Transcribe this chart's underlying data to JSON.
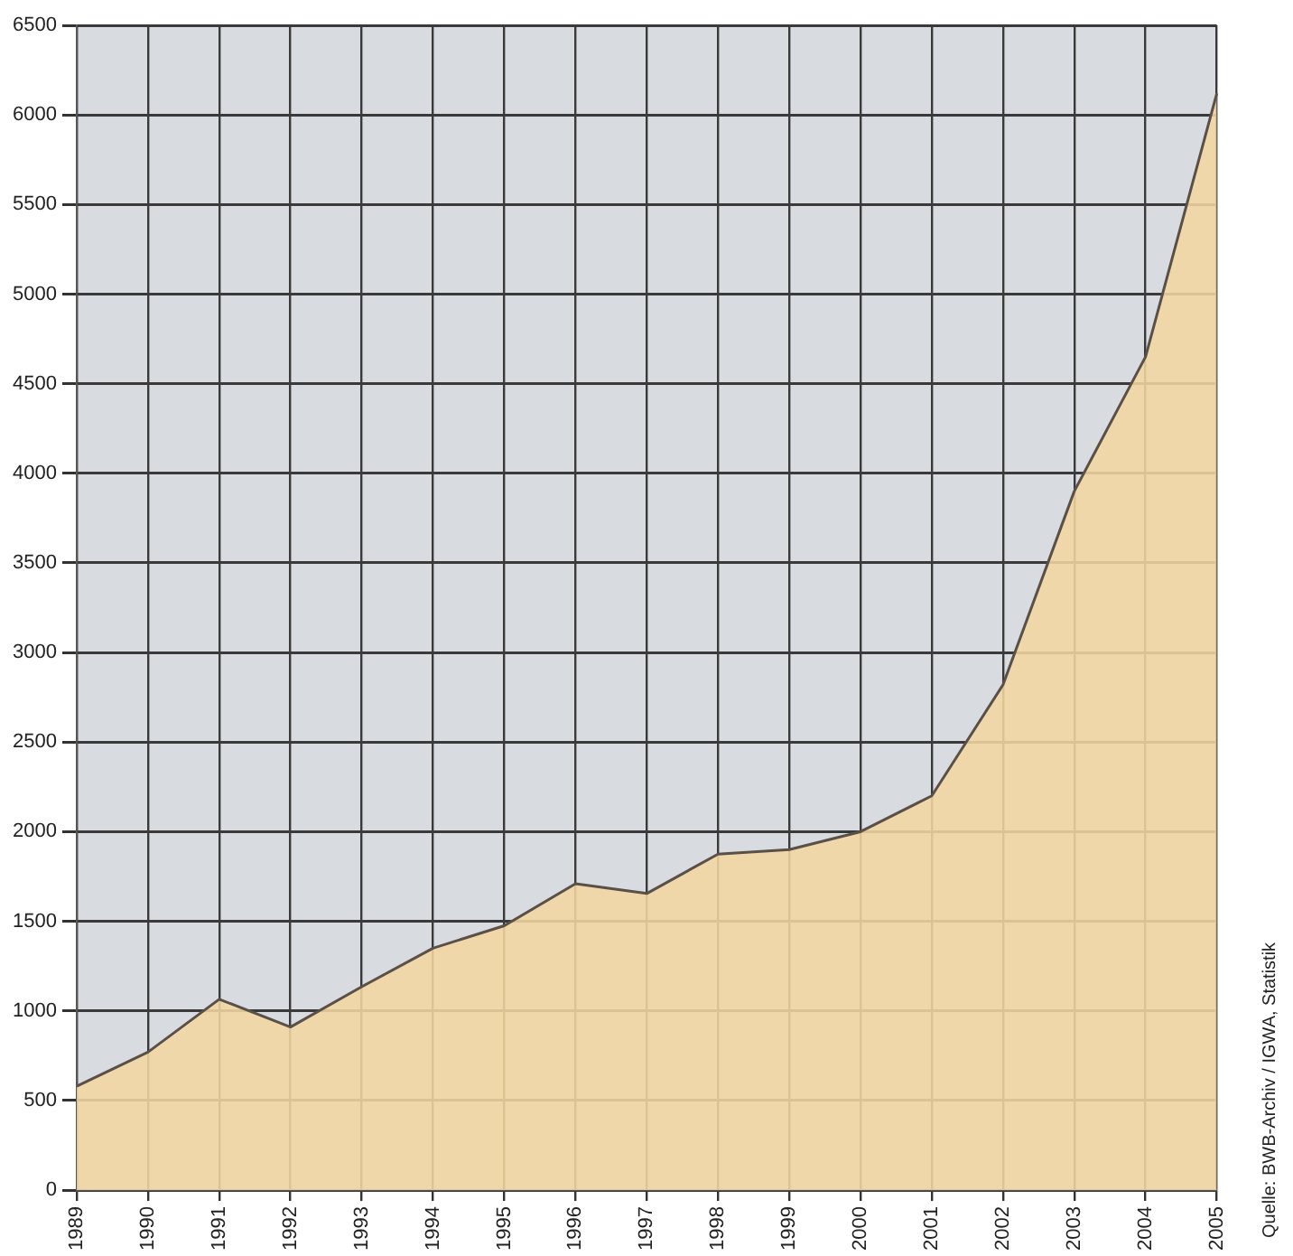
{
  "chart_data": {
    "type": "area",
    "categories": [
      "1989",
      "1990",
      "1991",
      "1992",
      "1993",
      "1994",
      "1995",
      "1996",
      "1997",
      "1998",
      "1999",
      "2000",
      "2001",
      "2002",
      "2003",
      "2004",
      "2005"
    ],
    "series": [
      {
        "color": "#f3d6a0",
        "values": [
          580,
          770,
          1065,
          910,
          1135,
          1350,
          1475,
          1710,
          1655,
          1875,
          1900,
          2000,
          2200,
          2820,
          3900,
          4650,
          6120
        ]
      }
    ],
    "ylim": [
      0,
      6500
    ],
    "yticks": [
      0,
      500,
      1000,
      1500,
      2000,
      2500,
      3000,
      3500,
      4000,
      4500,
      5000,
      5500,
      6000,
      6500
    ],
    "grid": true,
    "legend": false,
    "annotations": [
      "Quelle: BWB-Archiv / IGWA, Statistik"
    ]
  }
}
